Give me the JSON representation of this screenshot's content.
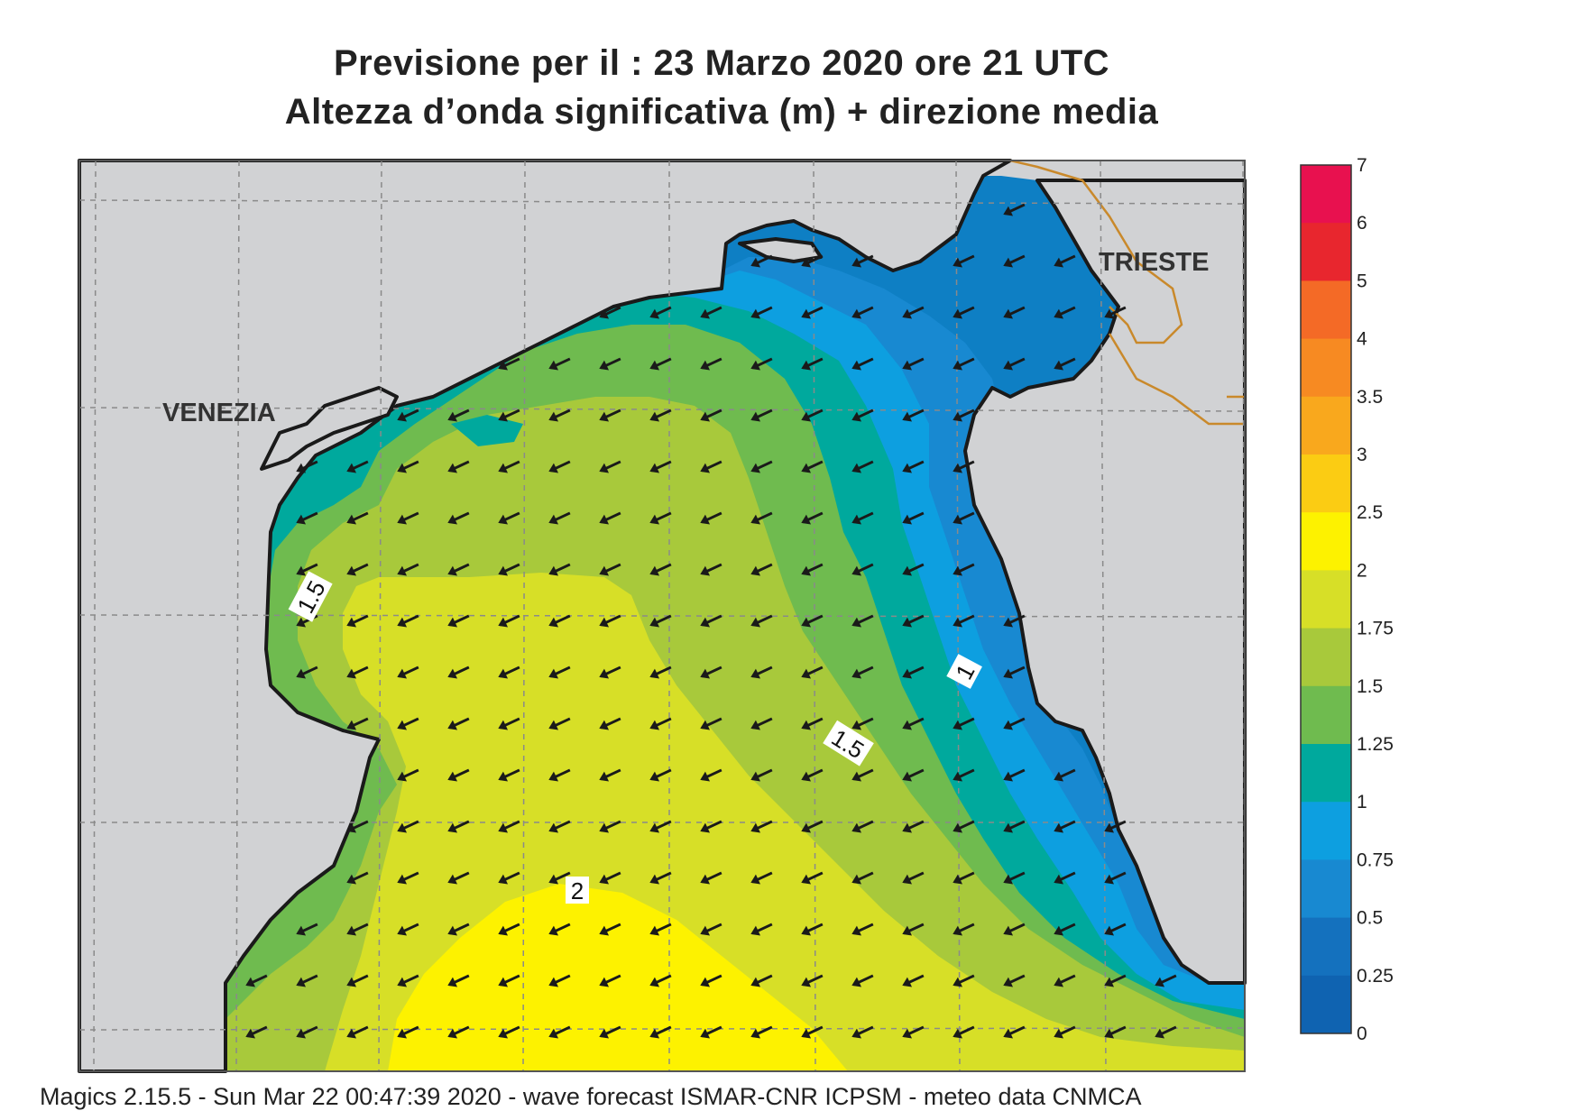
{
  "title_line1": "Previsione per il  :  23   Marzo   2020   ore 21 UTC",
  "title_line2": "Altezza d’onda significativa (m) + direzione media",
  "footer": "Magics 2.15.5 - Sun Mar 22 00:47:39 2020 - wave forecast  ISMAR-CNR  ICPSM - meteo data   CNMCA",
  "cities": [
    {
      "name": "VENEZIA"
    },
    {
      "name": "TRIESTE"
    }
  ],
  "contour_labels": [
    "1.5",
    "1",
    "1.5",
    "2"
  ],
  "colorbar": {
    "labels": [
      "7",
      "6",
      "5",
      "4",
      "3.5",
      "3",
      "2.5",
      "2",
      "1.75",
      "1.5",
      "1.25",
      "1",
      "0.75",
      "0.5",
      "0.25",
      "0"
    ],
    "colors": [
      "#e8114f",
      "#e8262e",
      "#f46a26",
      "#f78a22",
      "#f9a81d",
      "#fbcc13",
      "#fdf200",
      "#d7df27",
      "#a8c93b",
      "#6fbb4f",
      "#00a99d",
      "#0d9fe0",
      "#1889d1",
      "#1471be",
      "#0f63b1"
    ]
  },
  "colors": {
    "land": "#d1d2d4",
    "coast": "#1a1a1a",
    "border": "#c9892b",
    "grid": "#8a8a8a",
    "arrow": "#1a1a1a"
  },
  "wave_direction": "south-west"
}
